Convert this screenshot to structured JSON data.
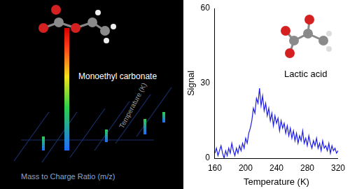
{
  "chart_data": {
    "type": "line",
    "title": "Lactic acid",
    "x_label": "Temperature (K)",
    "y_label": "Signal",
    "x": [
      160,
      162,
      164,
      166,
      168,
      170,
      172,
      174,
      176,
      178,
      180,
      182,
      184,
      186,
      188,
      190,
      192,
      194,
      196,
      198,
      200,
      202,
      204,
      206,
      208,
      210,
      212,
      214,
      216,
      218,
      220,
      222,
      224,
      226,
      228,
      230,
      232,
      234,
      236,
      238,
      240,
      242,
      244,
      246,
      248,
      250,
      252,
      254,
      256,
      258,
      260,
      262,
      264,
      266,
      268,
      270,
      272,
      274,
      276,
      278,
      280,
      282,
      284,
      286,
      288,
      290,
      292,
      294,
      296,
      298,
      300,
      302,
      304,
      306,
      308,
      310,
      312,
      314,
      316,
      318,
      320
    ],
    "values": [
      2,
      4,
      1,
      3,
      5,
      2,
      0,
      3,
      1,
      4,
      2,
      6,
      3,
      1,
      4,
      2,
      5,
      3,
      6,
      4,
      8,
      6,
      10,
      12,
      15,
      20,
      18,
      24,
      22,
      28,
      21,
      25,
      19,
      22,
      17,
      20,
      15,
      18,
      13,
      17,
      14,
      16,
      11,
      15,
      12,
      14,
      10,
      13,
      9,
      12,
      8,
      11,
      7,
      10,
      6,
      9,
      7,
      11,
      6,
      8,
      5,
      9,
      6,
      4,
      7,
      5,
      8,
      4,
      6,
      3,
      7,
      4,
      5,
      3,
      6,
      2,
      5,
      3,
      4,
      2,
      3
    ],
    "color": "#1c1ce6",
    "xlim": [
      160,
      320
    ],
    "xticks": [
      160,
      200,
      240,
      280,
      320
    ],
    "ylim": [
      0,
      60
    ],
    "yticks": [
      0,
      30,
      60
    ],
    "grid": false
  },
  "left_panel": {
    "molecule_label": "Monoethyl carbonate",
    "x_label": "Mass to Charge Ratio (m/z)",
    "y_label": "Temperature (K)"
  }
}
